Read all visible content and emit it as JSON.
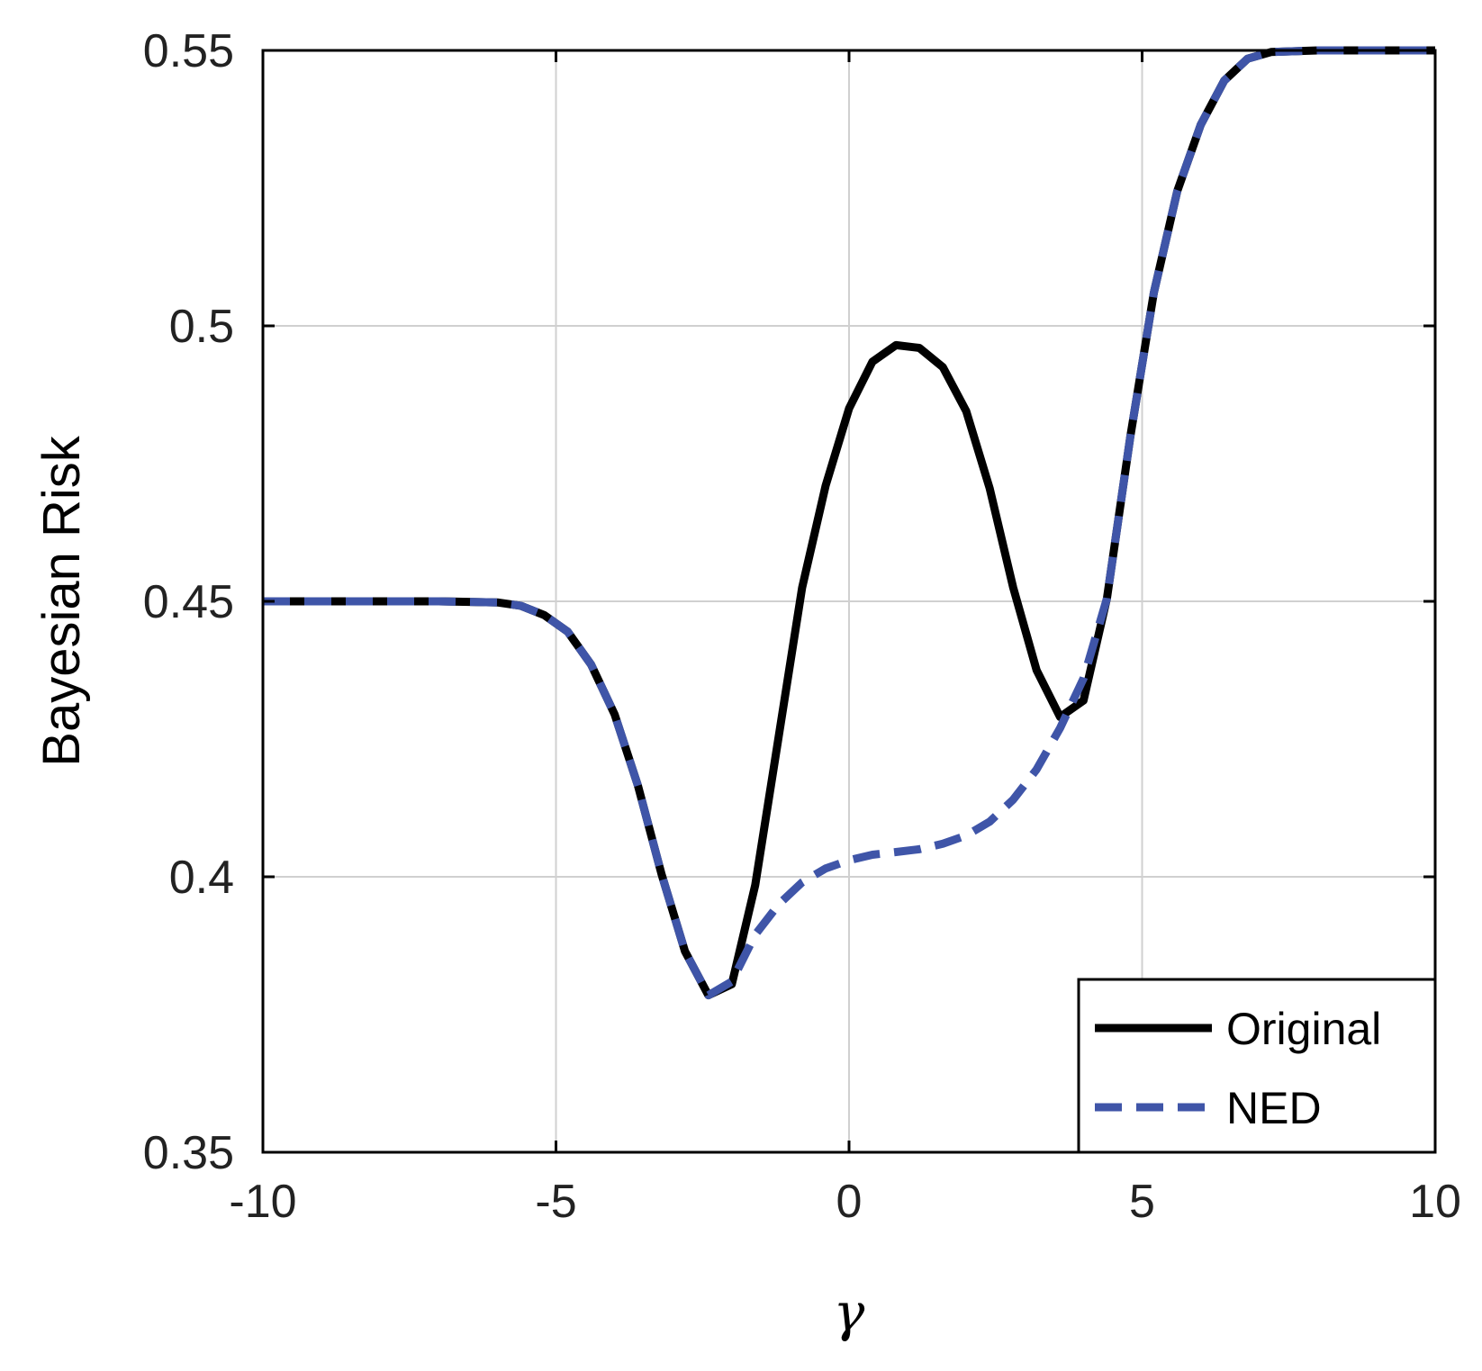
{
  "chart_data": {
    "type": "line",
    "title": "",
    "xlabel": "γ",
    "ylabel": "Bayesian Risk",
    "xlim": [
      -10,
      10
    ],
    "ylim": [
      0.35,
      0.55
    ],
    "xticks": [
      -10,
      -5,
      0,
      5,
      10
    ],
    "xtick_labels": [
      "-10",
      "-5",
      "0",
      "5",
      "10"
    ],
    "yticks": [
      0.35,
      0.4,
      0.45,
      0.5,
      0.55
    ],
    "ytick_labels": [
      "0.35",
      "0.4",
      "0.45",
      "0.5",
      "0.55"
    ],
    "grid": true,
    "legend_position": "bottom-right",
    "series": [
      {
        "name": "Original",
        "color": "#000000",
        "style": "solid",
        "x": [
          -10,
          -9,
          -8,
          -7,
          -6,
          -5.6,
          -5.2,
          -4.8,
          -4.4,
          -4.0,
          -3.6,
          -3.2,
          -2.8,
          -2.4,
          -2.0,
          -1.6,
          -1.2,
          -0.8,
          -0.4,
          0.0,
          0.4,
          0.8,
          1.2,
          1.6,
          2.0,
          2.4,
          2.8,
          3.2,
          3.6,
          4.0,
          4.4,
          4.8,
          5.2,
          5.6,
          6.0,
          6.4,
          6.8,
          7.2,
          8,
          9,
          10
        ],
        "y": [
          0.45,
          0.45,
          0.45,
          0.45,
          0.4498,
          0.4492,
          0.4475,
          0.4445,
          0.4385,
          0.4295,
          0.4165,
          0.4005,
          0.3865,
          0.3785,
          0.3805,
          0.3985,
          0.4255,
          0.4525,
          0.471,
          0.485,
          0.4935,
          0.4965,
          0.496,
          0.4925,
          0.4845,
          0.4705,
          0.4525,
          0.4375,
          0.429,
          0.432,
          0.4505,
          0.48,
          0.506,
          0.5245,
          0.5365,
          0.5445,
          0.5485,
          0.5497,
          0.55,
          0.55,
          0.55
        ]
      },
      {
        "name": "NED",
        "color": "#3f55a8",
        "style": "dashed",
        "x": [
          -10,
          -9,
          -8,
          -7,
          -6,
          -5.6,
          -5.2,
          -4.8,
          -4.4,
          -4.0,
          -3.6,
          -3.2,
          -2.8,
          -2.4,
          -2.0,
          -1.6,
          -1.2,
          -0.8,
          -0.4,
          0.0,
          0.4,
          0.8,
          1.2,
          1.6,
          2.0,
          2.4,
          2.8,
          3.2,
          3.6,
          4.0,
          4.4,
          4.8,
          5.2,
          5.6,
          6.0,
          6.4,
          6.8,
          7.2,
          8,
          9,
          10
        ],
        "y": [
          0.45,
          0.45,
          0.45,
          0.45,
          0.4498,
          0.4492,
          0.4475,
          0.4445,
          0.4385,
          0.4295,
          0.4165,
          0.4005,
          0.3865,
          0.3785,
          0.381,
          0.3895,
          0.395,
          0.399,
          0.4015,
          0.403,
          0.404,
          0.4045,
          0.405,
          0.406,
          0.4075,
          0.41,
          0.414,
          0.4195,
          0.427,
          0.436,
          0.4505,
          0.48,
          0.506,
          0.5245,
          0.5365,
          0.5445,
          0.5485,
          0.5497,
          0.55,
          0.55,
          0.55
        ]
      }
    ]
  }
}
